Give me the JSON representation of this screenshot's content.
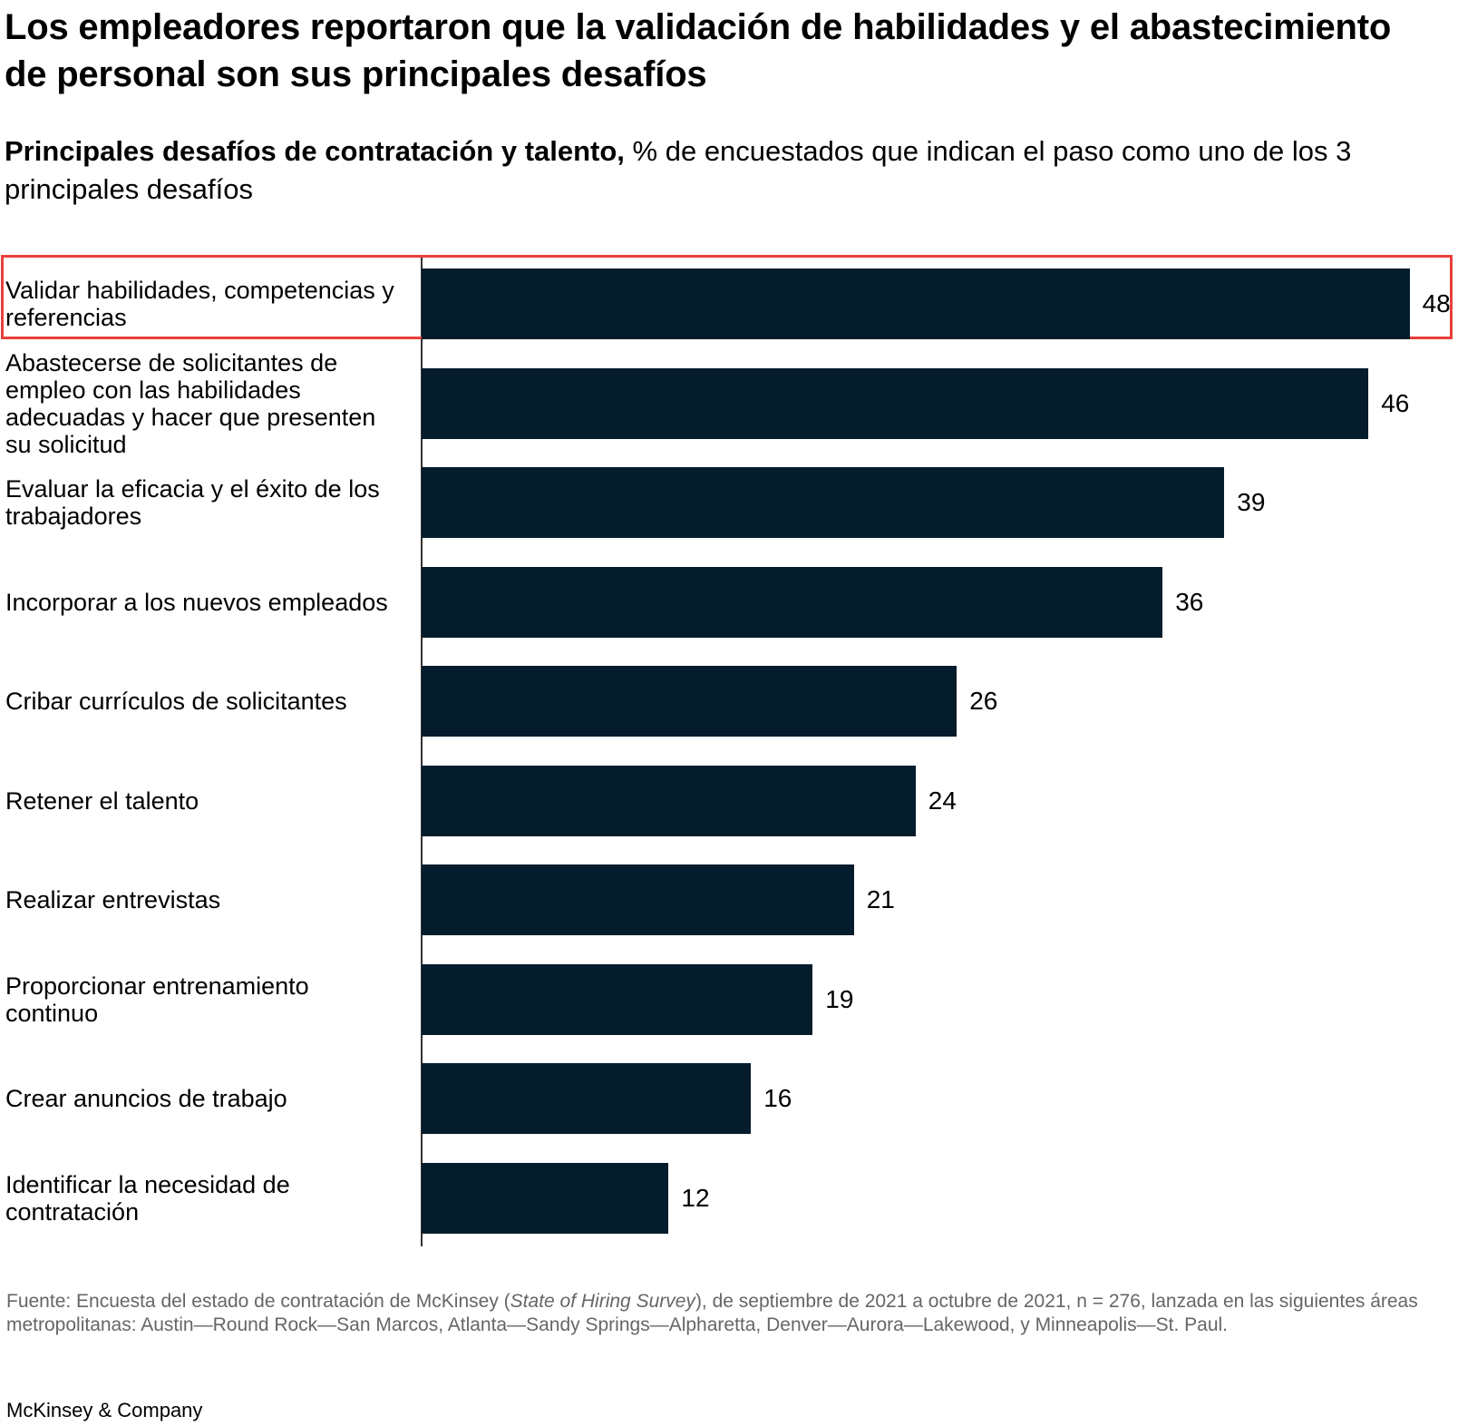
{
  "header": {
    "title": "Los empleadores reportaron que la validación de habilidades y el abastecimiento de personal son sus principales desafíos",
    "subtitle_bold": "Principales desafíos de contratación y talento,",
    "subtitle_rest": " % de encuestados que indican el paso como uno de los 3 principales desafíos"
  },
  "chart_data": {
    "type": "bar",
    "orientation": "horizontal",
    "categories": [
      "Validar habilidades, competencias y referencias",
      "Abastecerse de solicitantes de empleo con las habilidades adecuadas y hacer que presenten su solicitud",
      "Evaluar la eficacia y el éxito de los trabajadores",
      "Incorporar a los nuevos empleados",
      "Cribar currículos de solicitantes",
      "Retener el talento",
      "Realizar entrevistas",
      "Proporcionar entrenamiento continuo",
      "Crear anuncios de trabajo",
      "Identificar la necesidad de contratación"
    ],
    "values": [
      48,
      46,
      39,
      36,
      26,
      24,
      21,
      19,
      16,
      12
    ],
    "unit": "%",
    "xlim": [
      0,
      50
    ],
    "highlighted_category": "Validar habilidades, competencias y referencias",
    "bar_color": "#051c2c",
    "highlight_color": "#e8403a"
  },
  "footer": {
    "source_prefix": "Fuente: Encuesta del estado de contratación de McKinsey (",
    "source_italic": "State of Hiring Survey",
    "source_suffix": "), de septiembre de 2021 a octubre de 2021, n = 276, lanzada en las siguientes áreas metropolitanas: Austin—Round Rock—San Marcos, Atlanta—Sandy Springs—Alpharetta, Denver—Aurora—Lakewood, y Minneapolis—St. Paul.",
    "brand": "McKinsey & Company"
  }
}
